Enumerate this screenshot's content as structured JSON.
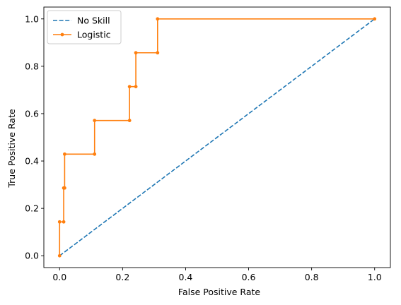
{
  "chart_data": {
    "type": "line",
    "xlabel": "False Positive Rate",
    "ylabel": "True Positive Rate",
    "xlim": [
      -0.05,
      1.05
    ],
    "ylim": [
      -0.05,
      1.05
    ],
    "xticks": [
      0.0,
      0.2,
      0.4,
      0.6,
      0.8,
      1.0
    ],
    "yticks": [
      0.0,
      0.2,
      0.4,
      0.6,
      0.8,
      1.0
    ],
    "xtick_labels": [
      "0.0",
      "0.2",
      "0.4",
      "0.6",
      "0.8",
      "1.0"
    ],
    "ytick_labels": [
      "0.0",
      "0.2",
      "0.4",
      "0.6",
      "0.8",
      "1.0"
    ],
    "grid": false,
    "legend_position": "top-left",
    "series": [
      {
        "name": "No Skill",
        "color": "#1f77b4",
        "style": "dashed",
        "markers": false,
        "x": [
          0,
          1
        ],
        "y": [
          0,
          1
        ]
      },
      {
        "name": "Logistic",
        "color": "#ff7f0e",
        "style": "solid",
        "markers": true,
        "x": [
          0.0,
          0.0,
          0.013,
          0.013,
          0.016,
          0.016,
          0.111,
          0.111,
          0.222,
          0.222,
          0.242,
          0.242,
          0.311,
          0.311,
          1.0
        ],
        "y": [
          0.0,
          0.143,
          0.143,
          0.286,
          0.286,
          0.429,
          0.429,
          0.571,
          0.571,
          0.714,
          0.714,
          0.857,
          0.857,
          1.0,
          1.0
        ]
      }
    ]
  }
}
